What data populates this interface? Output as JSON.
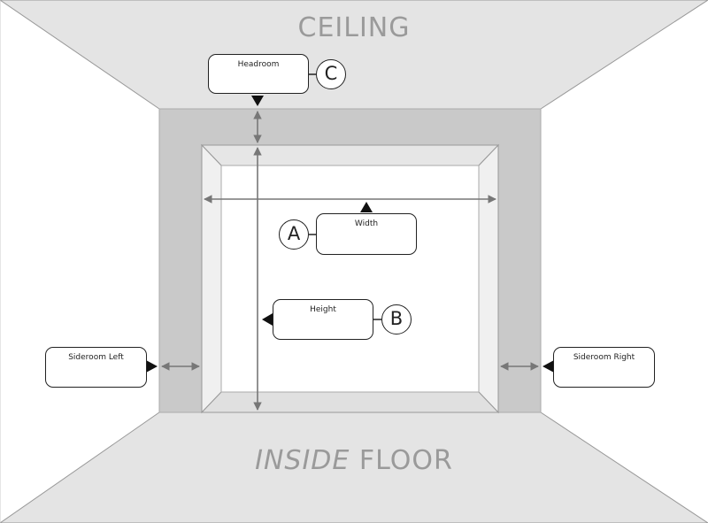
{
  "labels": {
    "ceiling": "CEILING",
    "floor_italic": "INSIDE",
    "floor": "FLOOR"
  },
  "callouts": {
    "headroom": {
      "text": "Headroom",
      "badge": "C"
    },
    "width": {
      "text": "Width",
      "badge": "A"
    },
    "height": {
      "text": "Height",
      "badge": "B"
    },
    "sideroom_left": {
      "text": "Sideroom Left"
    },
    "sideroom_right": {
      "text": "Sideroom Right"
    }
  },
  "colors": {
    "ceiling_floor": "#e4e4e4",
    "wall": "#c9c9c9",
    "frame_inner": "#f2f2f2",
    "opening": "#ffffff",
    "label": "#9a9a9a",
    "arrow": "#777777"
  }
}
